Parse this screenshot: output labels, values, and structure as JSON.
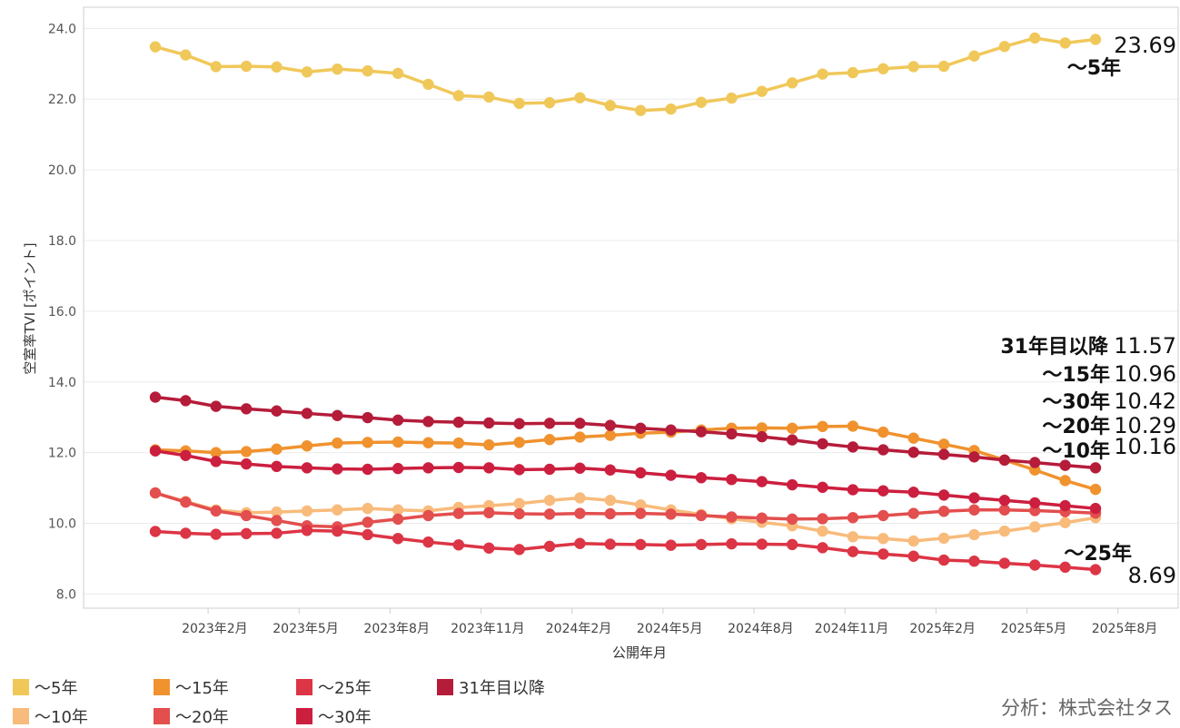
{
  "chart_data": {
    "type": "line",
    "xlabel": "公開年月",
    "ylabel": "空室率TVI [ポイント]",
    "ylim": [
      7.6,
      24.6
    ],
    "yticks": [
      "8.0",
      "10.0",
      "12.0",
      "14.0",
      "16.0",
      "18.0",
      "20.0",
      "22.0",
      "24.0"
    ],
    "x_categories": [
      "2023年1月",
      "2023年2月",
      "2023年3月",
      "2023年4月",
      "2023年5月",
      "2023年6月",
      "2023年7月",
      "2023年8月",
      "2023年9月",
      "2023年10月",
      "2023年11月",
      "2023年12月",
      "2024年1月",
      "2024年2月",
      "2024年3月",
      "2024年4月",
      "2024年5月",
      "2024年6月",
      "2024年7月",
      "2024年8月",
      "2024年9月",
      "2024年10月",
      "2024年11月",
      "2024年12月",
      "2025年1月",
      "2025年2月",
      "2025年3月",
      "2025年4月",
      "2025年5月",
      "2025年6月",
      "2025年7月",
      "2025年8月"
    ],
    "x_ticks": [
      {
        "index": 1,
        "label": "2023年2月"
      },
      {
        "index": 4,
        "label": "2023年5月"
      },
      {
        "index": 7,
        "label": "2023年8月"
      },
      {
        "index": 10,
        "label": "2023年11月"
      },
      {
        "index": 13,
        "label": "2024年2月"
      },
      {
        "index": 16,
        "label": "2024年5月"
      },
      {
        "index": 19,
        "label": "2024年8月"
      },
      {
        "index": 22,
        "label": "2024年11月"
      },
      {
        "index": 25,
        "label": "2025年2月"
      },
      {
        "index": 28,
        "label": "2025年5月"
      },
      {
        "index": 31,
        "label": "2025年8月"
      }
    ],
    "grid": true,
    "legend_position": "bottom-left",
    "series": [
      {
        "name": "～5年",
        "color": "#f0c85a",
        "last_value": "23.69",
        "values": [
          23.48,
          23.25,
          22.92,
          22.93,
          22.91,
          22.77,
          22.85,
          22.8,
          22.73,
          22.42,
          22.1,
          22.06,
          21.88,
          21.9,
          22.04,
          21.82,
          21.68,
          21.72,
          21.91,
          22.03,
          22.22,
          22.46,
          22.71,
          22.75,
          22.86,
          22.92,
          22.93,
          23.22,
          23.49,
          23.73,
          23.59,
          23.69
        ]
      },
      {
        "name": "～10年",
        "color": "#f8bb7c",
        "last_value": "10.16",
        "values": [
          10.86,
          10.62,
          10.38,
          10.3,
          10.32,
          10.35,
          10.38,
          10.42,
          10.38,
          10.35,
          10.45,
          10.5,
          10.56,
          10.65,
          10.72,
          10.65,
          10.52,
          10.38,
          10.25,
          10.13,
          10.03,
          9.93,
          9.78,
          9.62,
          9.57,
          9.5,
          9.58,
          9.68,
          9.78,
          9.9,
          10.02,
          10.16
        ]
      },
      {
        "name": "～15年",
        "color": "#f0922e",
        "last_value": "10.96",
        "values": [
          12.08,
          12.05,
          12.0,
          12.03,
          12.1,
          12.19,
          12.27,
          12.29,
          12.3,
          12.28,
          12.27,
          12.22,
          12.29,
          12.37,
          12.44,
          12.49,
          12.55,
          12.58,
          12.64,
          12.69,
          12.7,
          12.69,
          12.74,
          12.75,
          12.58,
          12.41,
          12.24,
          12.06,
          11.79,
          11.51,
          11.21,
          10.96
        ]
      },
      {
        "name": "～20年",
        "color": "#e34e4e",
        "last_value": "10.29",
        "values": [
          10.86,
          10.6,
          10.35,
          10.22,
          10.08,
          9.93,
          9.9,
          10.03,
          10.12,
          10.22,
          10.28,
          10.3,
          10.27,
          10.26,
          10.28,
          10.27,
          10.28,
          10.26,
          10.22,
          10.18,
          10.15,
          10.12,
          10.13,
          10.16,
          10.22,
          10.28,
          10.34,
          10.38,
          10.38,
          10.36,
          10.33,
          10.29
        ]
      },
      {
        "name": "～25年",
        "color": "#dc3545",
        "last_value": "8.69",
        "values": [
          9.77,
          9.72,
          9.69,
          9.71,
          9.72,
          9.8,
          9.78,
          9.68,
          9.57,
          9.47,
          9.39,
          9.3,
          9.26,
          9.35,
          9.43,
          9.41,
          9.4,
          9.38,
          9.4,
          9.42,
          9.41,
          9.4,
          9.31,
          9.2,
          9.13,
          9.07,
          8.96,
          8.93,
          8.87,
          8.82,
          8.76,
          8.69
        ]
      },
      {
        "name": "～30年",
        "color": "#cc1f3f",
        "last_value": "10.42",
        "values": [
          12.05,
          11.92,
          11.75,
          11.68,
          11.61,
          11.57,
          11.54,
          11.53,
          11.55,
          11.57,
          11.58,
          11.57,
          11.52,
          11.53,
          11.56,
          11.51,
          11.43,
          11.36,
          11.29,
          11.24,
          11.18,
          11.09,
          11.02,
          10.95,
          10.92,
          10.88,
          10.8,
          10.72,
          10.65,
          10.58,
          10.5,
          10.42
        ]
      },
      {
        "name": "31年目以降",
        "color": "#b51c3a",
        "last_value": "11.57",
        "values": [
          13.57,
          13.47,
          13.31,
          13.24,
          13.18,
          13.11,
          13.05,
          12.99,
          12.92,
          12.88,
          12.86,
          12.84,
          12.82,
          12.83,
          12.83,
          12.77,
          12.69,
          12.64,
          12.59,
          12.53,
          12.45,
          12.36,
          12.25,
          12.16,
          12.08,
          12.01,
          11.95,
          11.88,
          11.79,
          11.72,
          11.64,
          11.57
        ]
      }
    ],
    "end_labels": [
      {
        "series": "～5年",
        "name": "～5年",
        "value": "23.69"
      },
      {
        "series": "31年目以降",
        "name": "31年目以降",
        "value": "11.57"
      },
      {
        "series": "～15年",
        "name": "～15年",
        "value": "10.96"
      },
      {
        "series": "～30年",
        "name": "～30年",
        "value": "10.42"
      },
      {
        "series": "～20年",
        "name": "～20年",
        "value": "10.29"
      },
      {
        "series": "～10年",
        "name": "～10年",
        "value": "10.16"
      },
      {
        "series": "～25年",
        "name": "～25年",
        "value": "8.69"
      }
    ]
  },
  "legend": {
    "items": [
      {
        "label": "～5年",
        "color": "#f0c85a"
      },
      {
        "label": "～10年",
        "color": "#f8bb7c"
      },
      {
        "label": "～15年",
        "color": "#f0922e"
      },
      {
        "label": "～20年",
        "color": "#e34e4e"
      },
      {
        "label": "～25年",
        "color": "#dc3545"
      },
      {
        "label": "～30年",
        "color": "#cc1f3f"
      },
      {
        "label": "31年目以降",
        "color": "#b51c3a"
      }
    ]
  },
  "source_text": "分析：株式会社タス"
}
